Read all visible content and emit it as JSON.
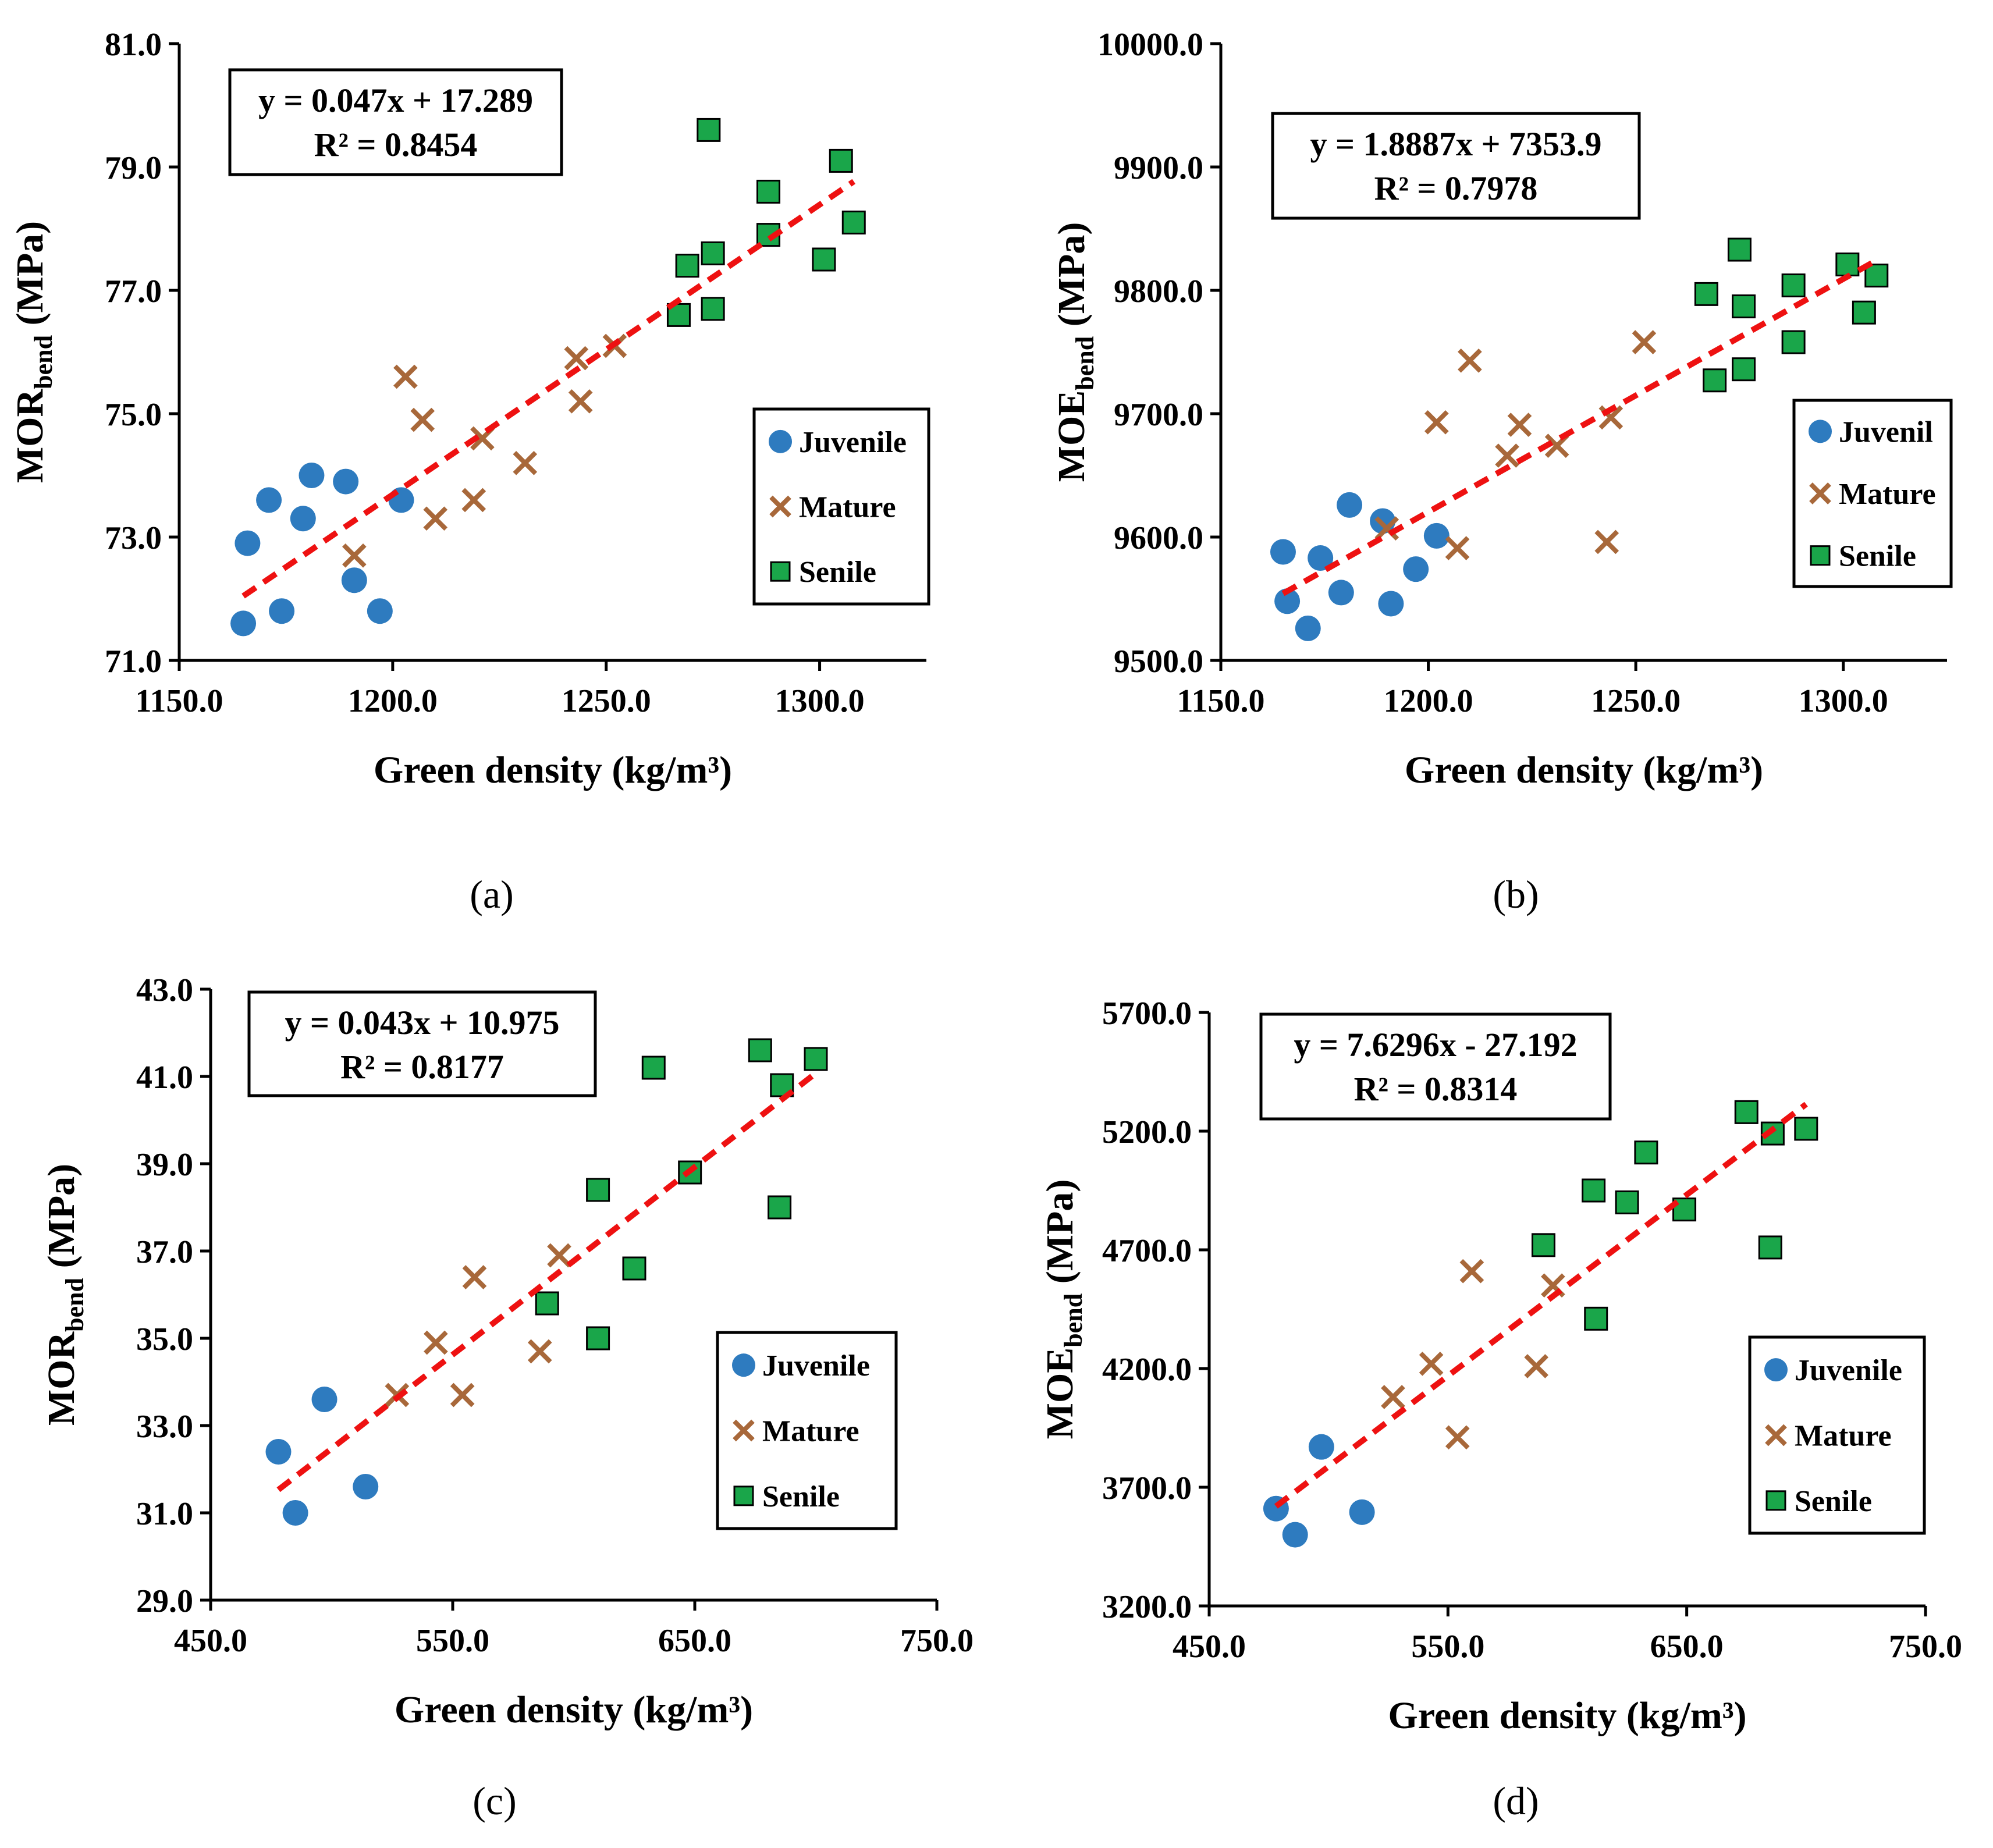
{
  "chart_data": [
    {
      "type": "scatter",
      "panel_label": "(a)",
      "xlabel": "Green density (kg/m³)",
      "ylabel": {
        "main": "MOR",
        "sub": "bend",
        "unit": " (MPa)"
      },
      "xlim": [
        1150.0,
        1325.0
      ],
      "ylim": [
        71.0,
        81.0
      ],
      "x_ticks": [
        1150.0,
        1200.0,
        1250.0,
        1300.0
      ],
      "x_tick_labels": [
        "1150.0",
        "1200.0",
        "1250.0",
        "1300.0"
      ],
      "y_ticks": [
        71.0,
        73.0,
        75.0,
        77.0,
        79.0,
        81.0
      ],
      "y_tick_labels": [
        "71.0",
        "73.0",
        "75.0",
        "77.0",
        "79.0",
        "81.0"
      ],
      "equation": "y = 0.047x + 17.289",
      "r_squared": "R² = 0.8454",
      "trendline": {
        "slope": 0.047,
        "intercept": 17.289,
        "x_range": [
          1165,
          1308
        ]
      },
      "series": [
        {
          "name": "Juvenile",
          "marker": "circle",
          "x": [
            1165,
            1166,
            1171,
            1174,
            1179,
            1181,
            1189,
            1191,
            1197,
            1202
          ],
          "y": [
            71.6,
            72.9,
            73.6,
            71.8,
            73.3,
            74.0,
            73.9,
            72.3,
            71.8,
            73.6
          ]
        },
        {
          "name": "Mature",
          "marker": "x",
          "x": [
            1191,
            1203,
            1207,
            1210,
            1219,
            1221,
            1231,
            1243,
            1244,
            1252
          ],
          "y": [
            72.7,
            75.6,
            74.9,
            73.3,
            73.6,
            74.6,
            74.2,
            75.9,
            75.2,
            76.1
          ]
        },
        {
          "name": "Senile",
          "marker": "square",
          "x": [
            1267,
            1269,
            1274,
            1275,
            1275,
            1288,
            1288,
            1301,
            1305,
            1308
          ],
          "y": [
            76.6,
            77.4,
            79.6,
            77.6,
            76.7,
            78.6,
            77.9,
            77.5,
            79.1,
            78.1
          ]
        }
      ]
    },
    {
      "type": "scatter",
      "panel_label": "(b)",
      "xlabel": "Green density (kg/m³)",
      "ylabel": {
        "main": "MOE",
        "sub": "bend",
        "unit": " (MPa)"
      },
      "xlim": [
        1150.0,
        1325.0
      ],
      "ylim": [
        9500.0,
        10000.0
      ],
      "x_ticks": [
        1150.0,
        1200.0,
        1250.0,
        1300.0
      ],
      "x_tick_labels": [
        "1150.0",
        "1200.0",
        "1250.0",
        "1300.0"
      ],
      "y_ticks": [
        9500.0,
        9600.0,
        9700.0,
        9800.0,
        9900.0,
        10000.0
      ],
      "y_tick_labels": [
        "9500.0",
        "9600.0",
        "9700.0",
        "9800.0",
        "9900.0",
        "10000.0"
      ],
      "equation": "y = 1.8887x + 7353.9",
      "r_squared": "R² = 0.7978",
      "trendline": {
        "slope": 1.8887,
        "intercept": 7353.9,
        "x_range": [
          1165,
          1308
        ]
      },
      "series": [
        {
          "name": "Juvenil",
          "marker": "circle",
          "x": [
            1165,
            1166,
            1171,
            1174,
            1179,
            1181,
            1189,
            1191,
            1197,
            1202
          ],
          "y": [
            9588,
            9548,
            9526,
            9583,
            9555,
            9626,
            9613,
            9546,
            9574,
            9601
          ]
        },
        {
          "name": "Mature",
          "marker": "x",
          "x": [
            1190,
            1202,
            1207,
            1210,
            1219,
            1222,
            1231,
            1243,
            1244,
            1252
          ],
          "y": [
            9607,
            9693,
            9591,
            9743,
            9666,
            9691,
            9674,
            9596,
            9697,
            9758
          ]
        },
        {
          "name": "Senile",
          "marker": "square",
          "x": [
            1267,
            1269,
            1275,
            1276,
            1276,
            1288,
            1288,
            1301,
            1305,
            1308
          ],
          "y": [
            9797,
            9727,
            9833,
            9787,
            9736,
            9804,
            9758,
            9821,
            9782,
            9812
          ]
        }
      ]
    },
    {
      "type": "scatter",
      "panel_label": "(c)",
      "xlabel": "Green density (kg/m³)",
      "ylabel": {
        "main": "MOR",
        "sub": "bend",
        "unit": " (MPa)"
      },
      "xlim": [
        450.0,
        750.0
      ],
      "ylim": [
        29.0,
        43.0
      ],
      "x_ticks": [
        450.0,
        550.0,
        650.0,
        750.0
      ],
      "x_tick_labels": [
        "450.0",
        "550.0",
        "650.0",
        "750.0"
      ],
      "y_ticks": [
        29.0,
        31.0,
        33.0,
        35.0,
        37.0,
        39.0,
        41.0,
        43.0
      ],
      "y_tick_labels": [
        "29.0",
        "31.0",
        "33.0",
        "35.0",
        "37.0",
        "39.0",
        "41.0",
        "43.0"
      ],
      "equation": "y = 0.043x + 10.975",
      "r_squared": "R² = 0.8177",
      "trendline": {
        "slope": 0.043,
        "intercept": 10.975,
        "x_range": [
          478,
          700
        ]
      },
      "series": [
        {
          "name": "Juvenile",
          "marker": "circle",
          "x": [
            478,
            485,
            497,
            514
          ],
          "y": [
            32.4,
            31.0,
            33.6,
            31.6
          ]
        },
        {
          "name": "Mature",
          "marker": "x",
          "x": [
            527,
            543,
            554,
            559,
            586,
            594
          ],
          "y": [
            33.7,
            34.9,
            33.7,
            36.4,
            34.7,
            36.9
          ]
        },
        {
          "name": "Senile",
          "marker": "square",
          "x": [
            589,
            610,
            610,
            625,
            633,
            648,
            677,
            686,
            685,
            700
          ],
          "y": [
            35.8,
            38.4,
            35.0,
            36.6,
            41.2,
            38.8,
            41.6,
            40.8,
            38.0,
            41.4
          ]
        }
      ]
    },
    {
      "type": "scatter",
      "panel_label": "(d)",
      "xlabel": "Green density (kg/m³)",
      "ylabel": {
        "main": "MOE",
        "sub": "bend",
        "unit": " (MPa)"
      },
      "xlim": [
        450.0,
        750.0
      ],
      "ylim": [
        3200.0,
        5700.0
      ],
      "x_ticks": [
        450.0,
        550.0,
        650.0,
        750.0
      ],
      "x_tick_labels": [
        "450.0",
        "550.0",
        "650.0",
        "750.0"
      ],
      "y_ticks": [
        3200.0,
        3700.0,
        4200.0,
        4700.0,
        5200.0,
        5700.0
      ],
      "y_tick_labels": [
        "3200.0",
        "3700.0",
        "4200.0",
        "4700.0",
        "5200.0",
        "5700.0"
      ],
      "equation": "y = 7.6296x - 27.192",
      "r_squared": "R² = 0.8314",
      "trendline": {
        "slope": 7.6296,
        "intercept": -27.192,
        "x_range": [
          478,
          700
        ]
      },
      "series": [
        {
          "name": "Juvenile",
          "marker": "circle",
          "x": [
            478,
            486,
            497,
            514
          ],
          "y": [
            3610,
            3500,
            3870,
            3595
          ]
        },
        {
          "name": "Mature",
          "marker": "x",
          "x": [
            527,
            543,
            554,
            560,
            587,
            594
          ],
          "y": [
            4080,
            4220,
            3910,
            4610,
            4210,
            4550
          ]
        },
        {
          "name": "Senile",
          "marker": "square",
          "x": [
            590,
            611,
            612,
            625,
            633,
            649,
            675,
            686,
            685,
            700
          ],
          "y": [
            4720,
            4950,
            4410,
            4900,
            5110,
            4870,
            5280,
            5190,
            4710,
            5210
          ]
        }
      ]
    }
  ]
}
